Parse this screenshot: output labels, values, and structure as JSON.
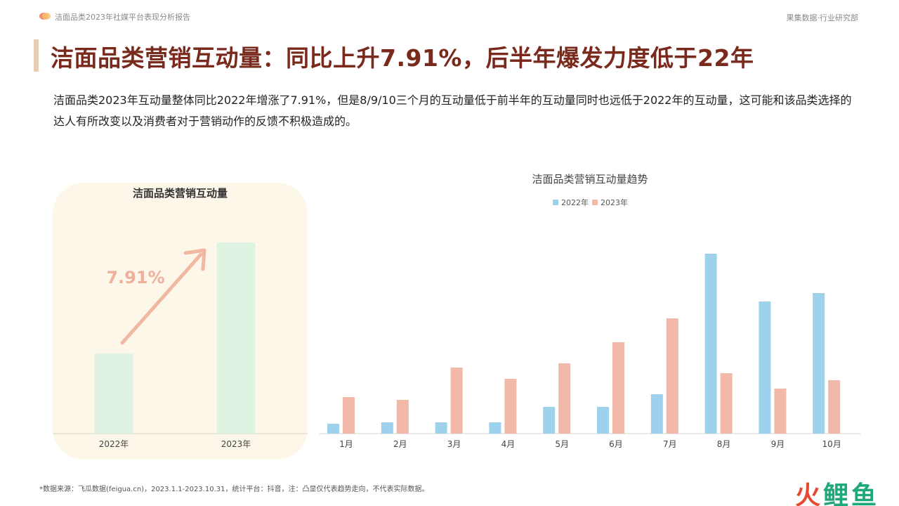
{
  "header": {
    "report_title": "洁面品类2023年社媒平台表现分析报告",
    "department": "果集数据·行业研究部",
    "headline": "洁面品类营销互动量：同比上升7.91%，后半年爆发力度低于22年"
  },
  "summary": "洁面品类2023年互动量整体同比2022年增涨了7.91%，但是8/9/10三个月的互动量低于前半年的互动量同时也远低于2022年的互动量，这可能和该品类选择的达人有所改变以及消费者对于营销动作的反馈不积极造成的。",
  "colors": {
    "s2022": "#9dd1ec",
    "s2023": "#f3b9a8",
    "left_bar": "#dff3e3",
    "arrow": "#f0b8a2",
    "pct": "#efb09c"
  },
  "chart_data": [
    {
      "type": "bar",
      "title": "洁面品类营销互动量",
      "categories": [
        "2022年",
        "2023年"
      ],
      "values": [
        100,
        239
      ],
      "ylim": [
        0,
        240
      ],
      "annotation": "7.91%",
      "grid": false
    },
    {
      "type": "bar",
      "title": "洁面品类营销互动量趋势",
      "categories": [
        "1月",
        "2月",
        "3月",
        "4月",
        "5月",
        "6月",
        "7月",
        "8月",
        "9月",
        "10月"
      ],
      "series": [
        {
          "name": "2022年",
          "values": [
            7,
            8,
            8,
            8,
            19,
            19,
            28,
            128,
            94,
            100
          ]
        },
        {
          "name": "2023年",
          "values": [
            26,
            24,
            47,
            39,
            50,
            65,
            82,
            43,
            32,
            38
          ]
        }
      ],
      "ylim": [
        0,
        128
      ],
      "legend": "top-center",
      "grid": false
    }
  ],
  "footnote": "*数据来源：飞瓜数据(feigua.cn)，2023.1.1-2023.10.31，统计平台：抖音，注：凸显仅代表趋势走向，不代表实际数据。",
  "watermark": {
    "part1": "火",
    "part2": "鲤鱼"
  }
}
